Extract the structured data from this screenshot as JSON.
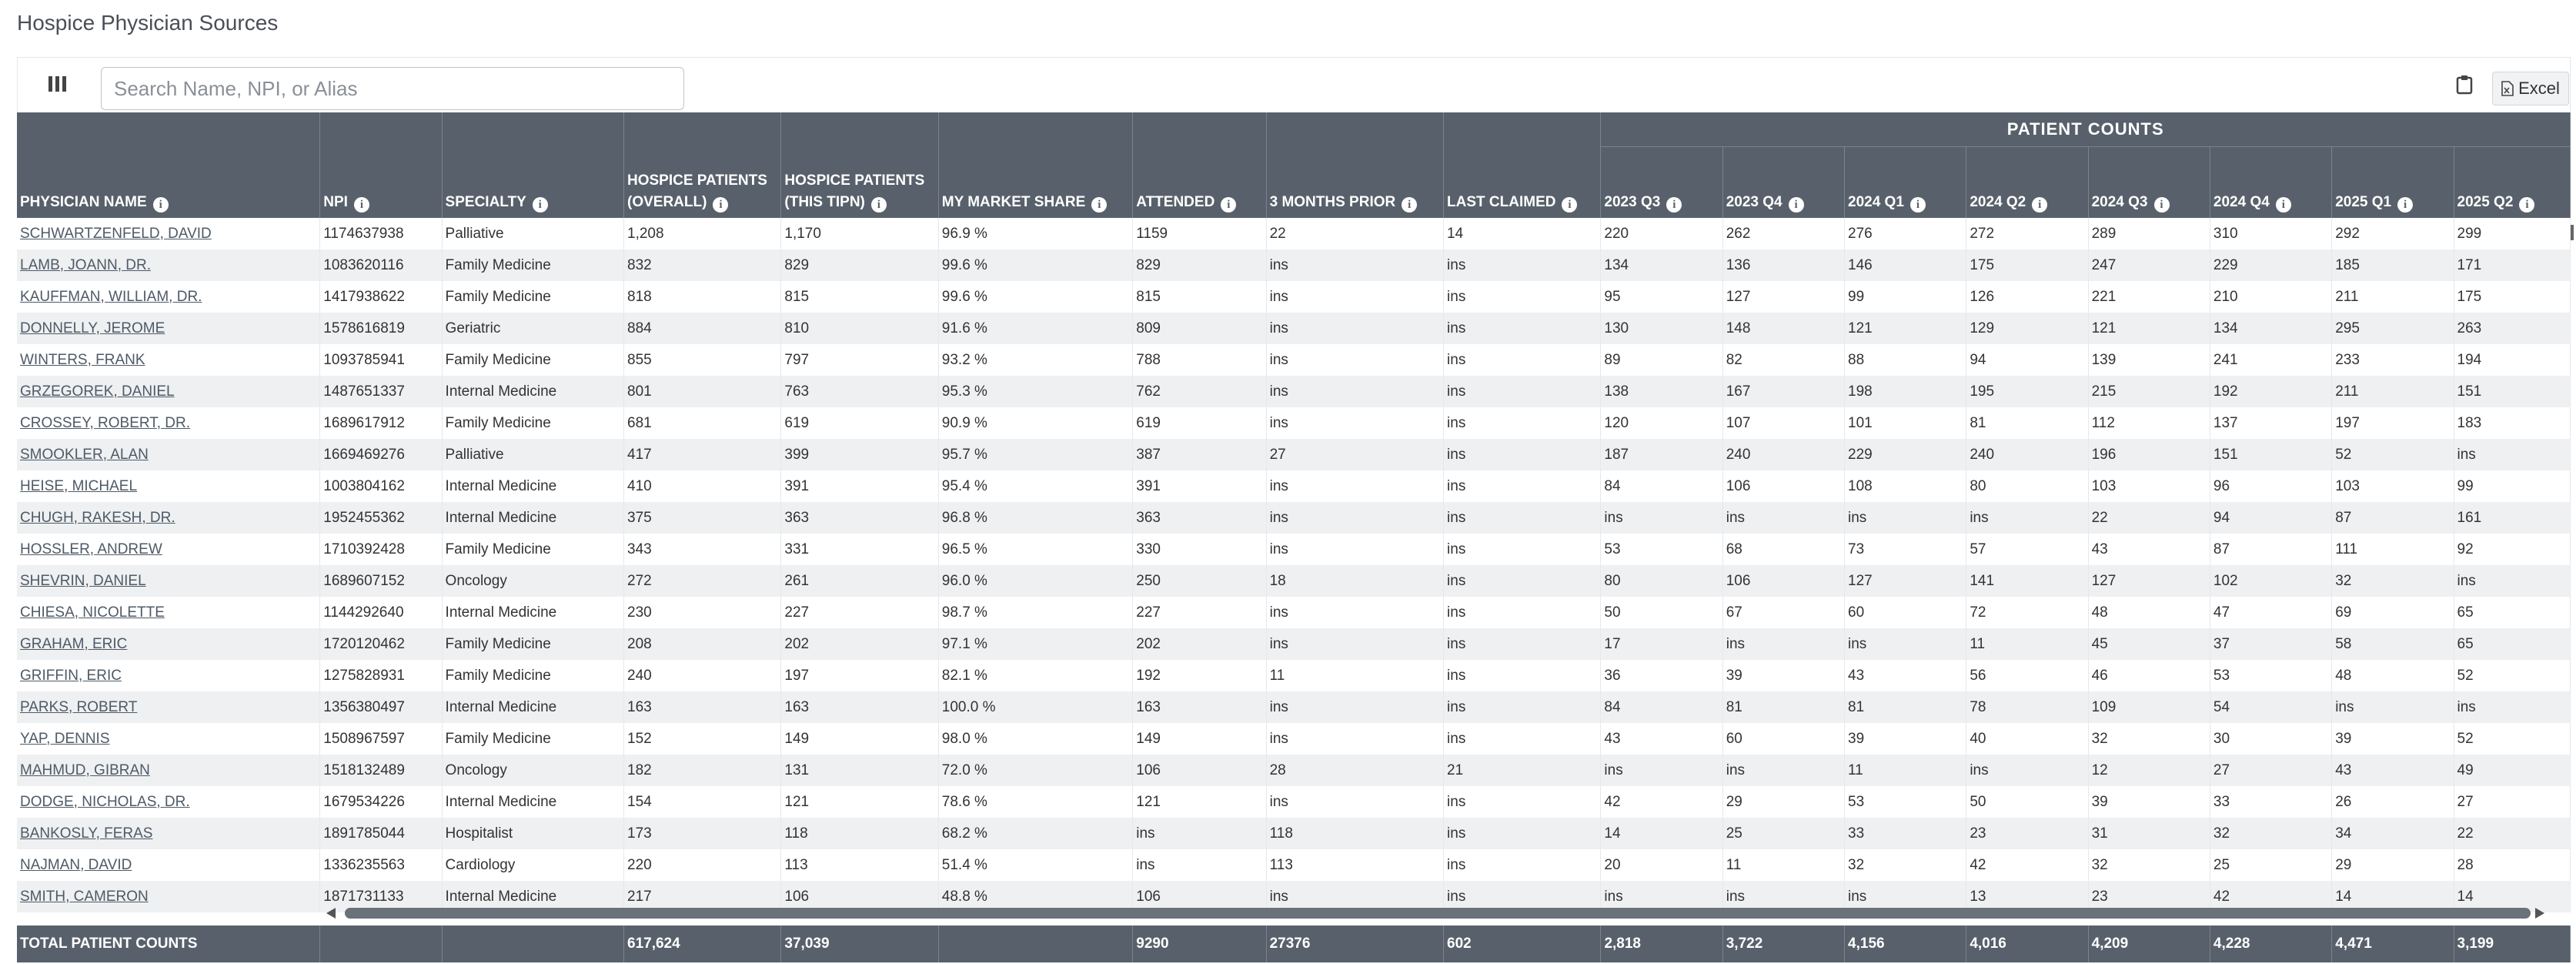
{
  "page": {
    "title": "Hospice Physician Sources"
  },
  "toolbar": {
    "columns_icon": "columns-icon",
    "search_placeholder": "Search Name, NPI, or Alias",
    "clipboard_icon": "clipboard-icon",
    "excel_label": "Excel",
    "excel_icon": "file-excel-icon"
  },
  "table": {
    "group_header": "PATIENT COUNTS",
    "columns": [
      "PHYSICIAN NAME",
      "NPI",
      "SPECIALTY",
      "HOSPICE PATIENTS\n(OVERALL)",
      "HOSPICE PATIENTS\n(THIS TIPN)",
      "MY MARKET SHARE",
      "ATTENDED",
      "3 MONTHS PRIOR",
      "LAST CLAIMED",
      "2023 Q3",
      "2023 Q4",
      "2024 Q1",
      "2024 Q2",
      "2024 Q3",
      "2024 Q4",
      "2025 Q1",
      "2025 Q2"
    ],
    "rows": [
      [
        "SCHWARTZENFELD, DAVID",
        "1174637938",
        "Palliative",
        "1,208",
        "1,170",
        "96.9 %",
        "1159",
        "22",
        "14",
        "220",
        "262",
        "276",
        "272",
        "289",
        "310",
        "292",
        "299"
      ],
      [
        "LAMB, JOANN, DR.",
        "1083620116",
        "Family Medicine",
        "832",
        "829",
        "99.6 %",
        "829",
        "ins",
        "ins",
        "134",
        "136",
        "146",
        "175",
        "247",
        "229",
        "185",
        "171"
      ],
      [
        "KAUFFMAN, WILLIAM, DR.",
        "1417938622",
        "Family Medicine",
        "818",
        "815",
        "99.6 %",
        "815",
        "ins",
        "ins",
        "95",
        "127",
        "99",
        "126",
        "221",
        "210",
        "211",
        "175"
      ],
      [
        "DONNELLY, JEROME",
        "1578616819",
        "Geriatric",
        "884",
        "810",
        "91.6 %",
        "809",
        "ins",
        "ins",
        "130",
        "148",
        "121",
        "129",
        "121",
        "134",
        "295",
        "263"
      ],
      [
        "WINTERS, FRANK",
        "1093785941",
        "Family Medicine",
        "855",
        "797",
        "93.2 %",
        "788",
        "ins",
        "ins",
        "89",
        "82",
        "88",
        "94",
        "139",
        "241",
        "233",
        "194"
      ],
      [
        "GRZEGOREK, DANIEL",
        "1487651337",
        "Internal Medicine",
        "801",
        "763",
        "95.3 %",
        "762",
        "ins",
        "ins",
        "138",
        "167",
        "198",
        "195",
        "215",
        "192",
        "211",
        "151"
      ],
      [
        "CROSSEY, ROBERT, DR.",
        "1689617912",
        "Family Medicine",
        "681",
        "619",
        "90.9 %",
        "619",
        "ins",
        "ins",
        "120",
        "107",
        "101",
        "81",
        "112",
        "137",
        "197",
        "183"
      ],
      [
        "SMOOKLER, ALAN",
        "1669469276",
        "Palliative",
        "417",
        "399",
        "95.7 %",
        "387",
        "27",
        "ins",
        "187",
        "240",
        "229",
        "240",
        "196",
        "151",
        "52",
        "ins"
      ],
      [
        "HEISE, MICHAEL",
        "1003804162",
        "Internal Medicine",
        "410",
        "391",
        "95.4 %",
        "391",
        "ins",
        "ins",
        "84",
        "106",
        "108",
        "80",
        "103",
        "96",
        "103",
        "99"
      ],
      [
        "CHUGH, RAKESH, DR.",
        "1952455362",
        "Internal Medicine",
        "375",
        "363",
        "96.8 %",
        "363",
        "ins",
        "ins",
        "ins",
        "ins",
        "ins",
        "ins",
        "22",
        "94",
        "87",
        "161"
      ],
      [
        "HOSSLER, ANDREW",
        "1710392428",
        "Family Medicine",
        "343",
        "331",
        "96.5 %",
        "330",
        "ins",
        "ins",
        "53",
        "68",
        "73",
        "57",
        "43",
        "87",
        "111",
        "92"
      ],
      [
        "SHEVRIN, DANIEL",
        "1689607152",
        "Oncology",
        "272",
        "261",
        "96.0 %",
        "250",
        "18",
        "ins",
        "80",
        "106",
        "127",
        "141",
        "127",
        "102",
        "32",
        "ins"
      ],
      [
        "CHIESA, NICOLETTE",
        "1144292640",
        "Internal Medicine",
        "230",
        "227",
        "98.7 %",
        "227",
        "ins",
        "ins",
        "50",
        "67",
        "60",
        "72",
        "48",
        "47",
        "69",
        "65"
      ],
      [
        "GRAHAM, ERIC",
        "1720120462",
        "Family Medicine",
        "208",
        "202",
        "97.1 %",
        "202",
        "ins",
        "ins",
        "17",
        "ins",
        "ins",
        "11",
        "45",
        "37",
        "58",
        "65"
      ],
      [
        "GRIFFIN, ERIC",
        "1275828931",
        "Family Medicine",
        "240",
        "197",
        "82.1 %",
        "192",
        "11",
        "ins",
        "36",
        "39",
        "43",
        "56",
        "46",
        "53",
        "48",
        "52"
      ],
      [
        "PARKS, ROBERT",
        "1356380497",
        "Internal Medicine",
        "163",
        "163",
        "100.0 %",
        "163",
        "ins",
        "ins",
        "84",
        "81",
        "81",
        "78",
        "109",
        "54",
        "ins",
        "ins"
      ],
      [
        "YAP, DENNIS",
        "1508967597",
        "Family Medicine",
        "152",
        "149",
        "98.0 %",
        "149",
        "ins",
        "ins",
        "43",
        "60",
        "39",
        "40",
        "32",
        "30",
        "39",
        "52"
      ],
      [
        "MAHMUD, GIBRAN",
        "1518132489",
        "Oncology",
        "182",
        "131",
        "72.0 %",
        "106",
        "28",
        "21",
        "ins",
        "ins",
        "11",
        "ins",
        "12",
        "27",
        "43",
        "49"
      ],
      [
        "DODGE, NICHOLAS, DR.",
        "1679534226",
        "Internal Medicine",
        "154",
        "121",
        "78.6 %",
        "121",
        "ins",
        "ins",
        "42",
        "29",
        "53",
        "50",
        "39",
        "33",
        "26",
        "27"
      ],
      [
        "BANKOSLY, FERAS",
        "1891785044",
        "Hospitalist",
        "173",
        "118",
        "68.2 %",
        "ins",
        "118",
        "ins",
        "14",
        "25",
        "33",
        "23",
        "31",
        "32",
        "34",
        "22"
      ],
      [
        "NAJMAN, DAVID",
        "1336235563",
        "Cardiology",
        "220",
        "113",
        "51.4 %",
        "ins",
        "113",
        "ins",
        "20",
        "11",
        "32",
        "42",
        "32",
        "25",
        "29",
        "28"
      ],
      [
        "SMITH, CAMERON",
        "1871731133",
        "Internal Medicine",
        "217",
        "106",
        "48.8 %",
        "106",
        "ins",
        "ins",
        "ins",
        "ins",
        "ins",
        "13",
        "23",
        "42",
        "14",
        "14"
      ]
    ],
    "totals": [
      "TOTAL PATIENT COUNTS",
      "",
      "",
      "617,624",
      "37,039",
      "",
      "9290",
      "27376",
      "602",
      "2,818",
      "3,722",
      "4,156",
      "4,016",
      "4,209",
      "4,228",
      "4,471",
      "3,199"
    ]
  }
}
